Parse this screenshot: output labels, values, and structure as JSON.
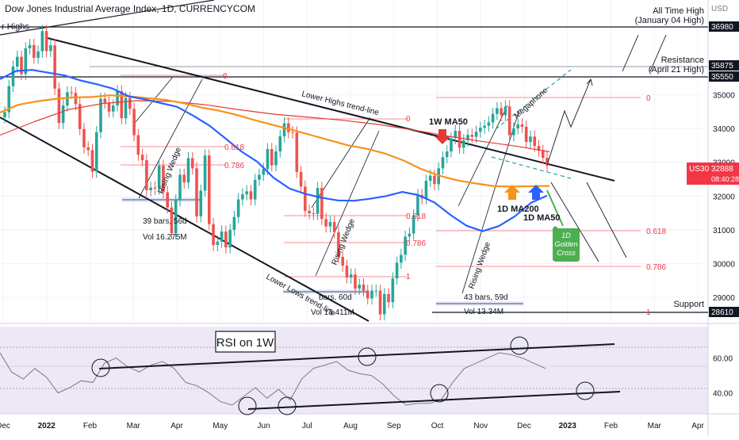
{
  "header": {
    "symbol_title": "Dow Jones Industrial Average Index, 1D, CURRENCYCOM",
    "currency": "USD"
  },
  "price_axis": {
    "ticks": [
      "35000",
      "34000",
      "33000",
      "32000",
      "31000",
      "30000",
      "29000"
    ],
    "ticks_values": [
      35000,
      34000,
      33000,
      32000,
      31000,
      30000,
      29000
    ],
    "ylim": [
      28300,
      37800
    ]
  },
  "rsi_axis": {
    "ticks": [
      "60.00",
      "40.00"
    ],
    "ticks_values": [
      60,
      40
    ],
    "ylim": [
      28,
      78
    ]
  },
  "time_axis": {
    "labels": [
      "Dec",
      "2022",
      "Feb",
      "Mar",
      "Apr",
      "May",
      "Jun",
      "Jul",
      "Aug",
      "Sep",
      "Oct",
      "Nov",
      "Dec",
      "2023",
      "Feb",
      "Mar",
      "Apr"
    ],
    "bold": [
      "2022",
      "2023"
    ]
  },
  "price_badges": [
    {
      "value": "36980",
      "bg": "#131722",
      "fg": "#ffffff"
    },
    {
      "value": "35875",
      "bg": "#131722",
      "fg": "#ffffff"
    },
    {
      "value": "35550",
      "bg": "#131722",
      "fg": "#ffffff"
    },
    {
      "value": "28610",
      "bg": "#131722",
      "fg": "#ffffff"
    }
  ],
  "current_price": {
    "ticker": "US30",
    "price": "32888",
    "countdown": "08:40:28",
    "color": "#f23645"
  },
  "annotations": {
    "higher_highs": "r Highs",
    "all_time_high": "All Time High",
    "all_time_high_date": "(January 04 High)",
    "resistance": "Resistance",
    "resistance_date": "(April 21 High)",
    "support": "Support",
    "lower_highs": "Lower Highs trend-line",
    "lower_lows": "Lower Lows trend-line",
    "megaphone": "Megaphone",
    "rising_wedge_1": "Rising Wedge",
    "rising_wedge_2": "Rising Wedge",
    "rising_wedge_3": "Rising Wedge",
    "ma50_1w": "1W MA50",
    "ma200_1d": "1D MA200",
    "ma50_1d": "1D MA50",
    "golden_cross_1": "1D",
    "golden_cross_2": "Golden",
    "golden_cross_3": "Cross",
    "rsi_title": "RSI on 1W",
    "fib_zero_a": "0",
    "fib_618_a": "0.618",
    "fib_786_a": "0.786",
    "fib_zero_b": "0",
    "fib_618_b": "0.618",
    "fib_786_b": "0.786",
    "fib_one_b": "1",
    "fib_zero_c": "0",
    "fib_618_c": "0.618",
    "fib_786_c": "0.786",
    "fib_one_c": "1",
    "range1_bars": "39 bars, 56d",
    "range1_vol": "Vol 16.275M",
    "range2_bars": "bars, 60d",
    "range2_vol": "Vol 13.411M",
    "range3_bars": "43 bars, 59d",
    "range3_vol": "Vol 13.34M"
  },
  "colors": {
    "ma50_blue": "#2962ff",
    "ma200_orange": "#f7931a",
    "ma50_1w_red": "#e53935",
    "up_candle": "#26a69a",
    "down_candle": "#ef5350",
    "fib_line": "#f23645",
    "golden_cross_bg": "#4caf50",
    "rsi_bg": "#ede7f6"
  },
  "chart_data": {
    "type": "candlestick",
    "series": [
      {
        "name": "Dow Jones Industrial Average Index",
        "values": [
          34480,
          35250,
          35830,
          36120,
          35610,
          36370,
          36470,
          36090,
          36280,
          36880,
          36290,
          36460,
          35180,
          34160,
          34680,
          35070,
          35050,
          34720,
          33980,
          33440,
          33360,
          32720,
          33890,
          34880,
          34760,
          34500,
          34680,
          35100,
          34300,
          34900,
          34580,
          33800,
          33220,
          33060,
          32170,
          32250,
          32220,
          32900,
          32110,
          31660,
          30900,
          31870,
          32630,
          32400,
          33120,
          32820,
          31400,
          32160,
          33200,
          31170,
          30550,
          30650,
          30950,
          30480,
          31000,
          31380,
          31900,
          32050,
          32140,
          31900,
          32480,
          32630,
          32800,
          33390,
          32910,
          33320,
          33770,
          34150,
          33890,
          33880,
          32710,
          32280,
          31560,
          31490,
          31470,
          32240,
          31320,
          31100,
          31230,
          30930,
          30200,
          29940,
          29590,
          29680,
          29260,
          29380,
          29200,
          28970,
          29200,
          29200,
          28500,
          29100,
          28860,
          29560,
          30030,
          30260,
          30800,
          30890,
          31430,
          32030,
          31930,
          32450,
          32600,
          32350,
          32820,
          33150,
          33320,
          33710,
          33930,
          33430,
          33650,
          33810,
          33750,
          33900,
          34020,
          34080,
          34180,
          34430,
          34600,
          34390,
          34650,
          33800,
          34000,
          34120,
          34050,
          33600,
          33760,
          33480,
          33340,
          33130,
          32900
        ]
      },
      {
        "name": "1D MA50",
        "values": [
          35460,
          35700,
          35730,
          35650,
          35570,
          35420,
          35310,
          35180,
          34950,
          34860,
          34750,
          34640,
          34380,
          34090,
          33710,
          33320,
          33010,
          32540,
          32220,
          32060,
          31950,
          31870,
          31860,
          31920,
          32000,
          32120,
          32030,
          31810,
          31440,
          31120,
          30960,
          31110,
          31400,
          31800,
          32010
        ]
      },
      {
        "name": "1D MA200",
        "values": [
          34470,
          34700,
          34800,
          34870,
          34920,
          34930,
          34980,
          34950,
          34900,
          34850,
          34750,
          34620,
          34520,
          34390,
          34230,
          34090,
          33950,
          33800,
          33650,
          33500,
          33400,
          33260,
          33060,
          32800,
          32600,
          32460,
          32370,
          32290,
          32280,
          32290,
          32300
        ]
      },
      {
        "name": "1W MA50",
        "values": [
          33800,
          34200,
          34560,
          34740,
          34820,
          34800,
          34700,
          34550,
          34420,
          34330,
          34240,
          34120,
          33960,
          33780,
          33620,
          33480,
          33310
        ]
      },
      {
        "name": "RSI on 1W",
        "values": [
          63,
          52,
          48,
          54,
          49,
          40,
          43,
          47,
          46,
          57,
          60,
          55,
          52,
          56,
          58,
          54,
          46,
          44,
          40,
          35,
          33,
          38,
          43,
          37,
          42,
          36,
          48,
          54,
          56,
          58,
          53,
          51,
          50,
          45,
          38,
          33,
          34,
          34,
          36,
          46,
          54,
          57,
          60,
          63,
          62,
          60,
          57,
          54
        ]
      }
    ]
  }
}
